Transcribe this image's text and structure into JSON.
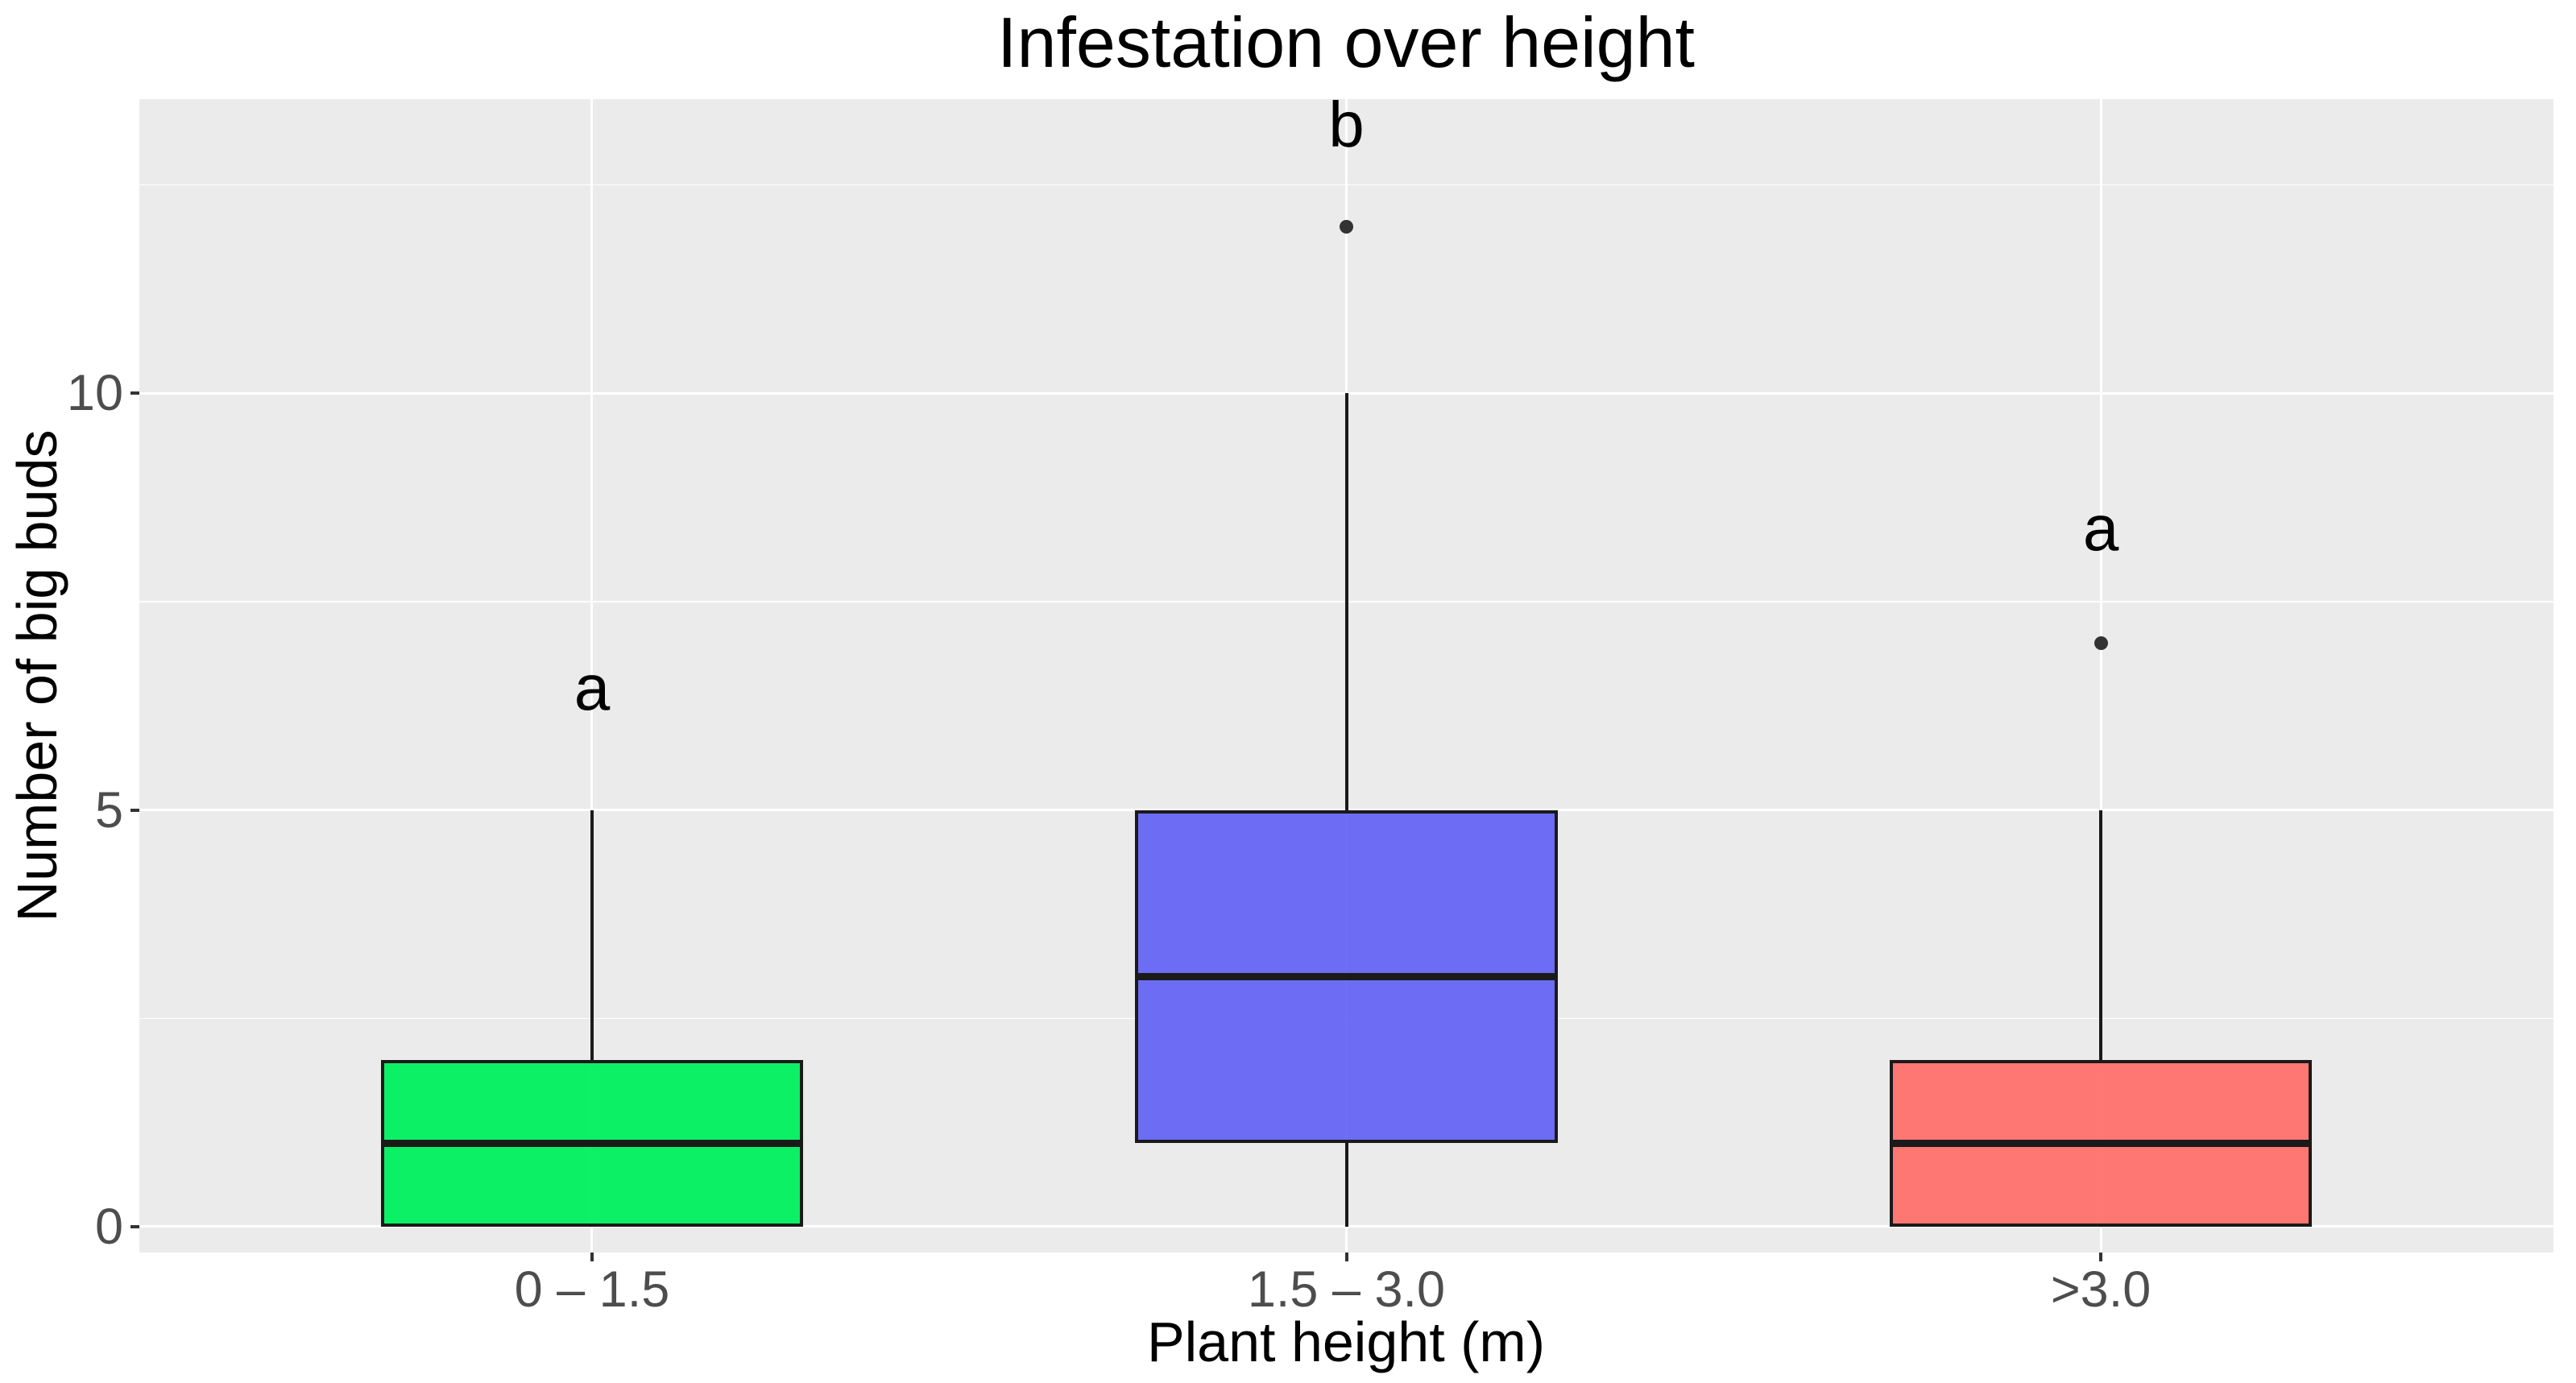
{
  "chart_data": {
    "type": "boxplot",
    "title": "Infestation over height",
    "xlabel": "Plant height (m)",
    "ylabel": "Number of big buds",
    "categories": [
      "0 – 1.5",
      "1.5 – 3.0",
      ">3.0"
    ],
    "y_ticks": [
      0,
      5,
      10
    ],
    "y_minor_gridlines": [
      2.5,
      7.5,
      12.5
    ],
    "ylim": [
      -0.31,
      13.53
    ],
    "legend": "none",
    "grid": "white major/minor horizontal lines and one white vertical line per category on grey panel",
    "boxes": [
      {
        "category": "0 – 1.5",
        "fill": "rgba(0,240,95,0.95)",
        "whisker_low": 0,
        "q1": 0,
        "median": 1,
        "q3": 2,
        "whisker_high": 5,
        "outliers": [],
        "sig_label": "a",
        "sig_label_baseline_value": 6.24
      },
      {
        "category": "1.5 – 3.0",
        "fill": "rgba(90,90,245,0.88)",
        "whisker_low": 0,
        "q1": 1,
        "median": 3,
        "q3": 5,
        "whisker_high": 10,
        "outliers": [
          12
        ],
        "sig_label": "b",
        "sig_label_baseline_value": 13.0
      },
      {
        "category": ">3.0",
        "fill": "rgba(255,110,105,0.93)",
        "whisker_low": 0,
        "q1": 0,
        "median": 1,
        "q3": 2,
        "whisker_high": 5,
        "outliers": [
          7
        ],
        "sig_label": "a",
        "sig_label_baseline_value": 8.16
      }
    ],
    "colors": {
      "panel_background": "#EBEBEB",
      "gridline": "#FFFFFF",
      "box_stroke": "#1A1A1A",
      "whisker": "#1A1A1A",
      "outlier": "#333333",
      "tick_text": "#4D4D4D",
      "tick_mark": "#333333",
      "text": "#000000"
    }
  }
}
